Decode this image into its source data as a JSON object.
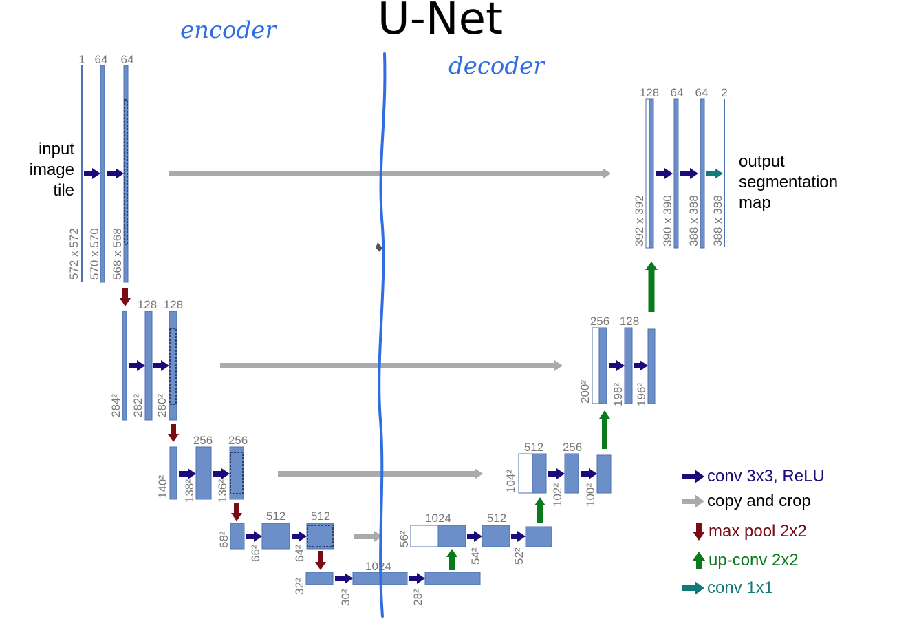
{
  "title": "U-Net",
  "annotations": {
    "encoder": "encoder",
    "decoder": "decoder"
  },
  "input_label": [
    "input",
    "image",
    "tile"
  ],
  "output_label": [
    "output",
    "segmentation",
    "map"
  ],
  "legend": [
    {
      "label": "conv 3x3, ReLU",
      "type": "conv",
      "color": "#1a0a7a"
    },
    {
      "label": "copy and crop",
      "type": "copy",
      "color": "#000000"
    },
    {
      "label": "max pool 2x2",
      "type": "pool",
      "color": "#7a0a14"
    },
    {
      "label": "up-conv 2x2",
      "type": "up",
      "color": "#0b7a1c"
    },
    {
      "label": "conv 1x1",
      "type": "c1x1",
      "color": "#137a7a"
    }
  ],
  "colors": {
    "block": "#6c8fc9",
    "block_border": "#4e72b0",
    "crop_dash": "#2a3f7a",
    "conv_arrow": "#1a0a7a",
    "pool_arrow": "#7a0a14",
    "up_arrow": "#0b7a1c",
    "copy_arrow": "#aaaaaa",
    "c1x1_arrow": "#137a7a",
    "label": "#777777",
    "pen": "#2f6de0"
  },
  "channels": {
    "l1": [
      "1",
      "64",
      "64"
    ],
    "l2": [
      "128",
      "128"
    ],
    "l3": [
      "256",
      "256"
    ],
    "l4": [
      "512",
      "512"
    ],
    "l5": [
      "1024"
    ],
    "d4": [
      "1024",
      "512"
    ],
    "d3": [
      "512",
      "256"
    ],
    "d2": [
      "256",
      "128"
    ],
    "d1": [
      "128",
      "64",
      "64",
      "2"
    ]
  },
  "sizes": {
    "l1": [
      "572 x 572",
      "570 x 570",
      "568 x 568"
    ],
    "l2": [
      "284²",
      "282²",
      "280²"
    ],
    "l3": [
      "140²",
      "138²",
      "136²"
    ],
    "l4": [
      "68²",
      "66²",
      "64²"
    ],
    "l5": [
      "32²",
      "30²",
      "28²"
    ],
    "d4": [
      "56²",
      "54²",
      "52²"
    ],
    "d3": [
      "104²",
      "102²",
      "100²"
    ],
    "d2": [
      "200²",
      "198²",
      "196²"
    ],
    "d1": [
      "392 x 392",
      "390 x 390",
      "388 x 388",
      "388 x 388"
    ]
  }
}
